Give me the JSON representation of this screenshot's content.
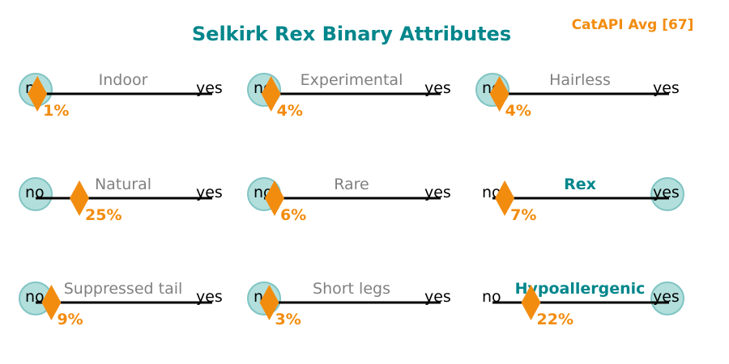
{
  "title": "Selkirk Rex Binary Attributes",
  "legend_label": "CatAPI Avg [67]",
  "colors": {
    "title": "#00868b",
    "accent": "#f28c0f",
    "muted": "#808080",
    "highlight": "#00868b",
    "circle_fill": "#b2dfdb",
    "circle_stroke": "#80c4c4",
    "line": "#000000"
  },
  "chart_data": {
    "type": "binary-scale",
    "title": "Selkirk Rex Binary Attributes",
    "legend": "CatAPI Avg [67]",
    "scale_min_label": "no",
    "scale_max_label": "yes",
    "attributes": [
      {
        "name": "Indoor",
        "breed_value": "no",
        "avg_percent": 1,
        "avg_label": "1%"
      },
      {
        "name": "Experimental",
        "breed_value": "no",
        "avg_percent": 4,
        "avg_label": "4%"
      },
      {
        "name": "Hairless",
        "breed_value": "no",
        "avg_percent": 4,
        "avg_label": "4%"
      },
      {
        "name": "Natural",
        "breed_value": "no",
        "avg_percent": 25,
        "avg_label": "25%"
      },
      {
        "name": "Rare",
        "breed_value": "no",
        "avg_percent": 6,
        "avg_label": "6%"
      },
      {
        "name": "Rex",
        "breed_value": "yes",
        "avg_percent": 7,
        "avg_label": "7%"
      },
      {
        "name": "Suppressed tail",
        "breed_value": "no",
        "avg_percent": 9,
        "avg_label": "9%"
      },
      {
        "name": "Short legs",
        "breed_value": "no",
        "avg_percent": 3,
        "avg_label": "3%"
      },
      {
        "name": "Hypoallergenic",
        "breed_value": "yes",
        "avg_percent": 22,
        "avg_label": "22%"
      }
    ]
  }
}
